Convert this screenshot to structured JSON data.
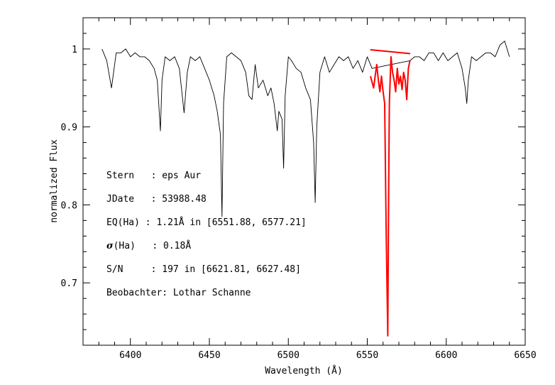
{
  "chart_data": {
    "type": "line",
    "title": "",
    "xlabel": "Wavelength (Å)",
    "ylabel": "normalized Flux",
    "xlim": [
      6370,
      6650
    ],
    "ylim": [
      0.62,
      1.04
    ],
    "x_ticks": [
      6400,
      6450,
      6500,
      6550,
      6600,
      6650
    ],
    "y_ticks": [
      0.7,
      0.8,
      0.9,
      1.0
    ],
    "x_tick_labels": [
      "6400",
      "6450",
      "6500",
      "6550",
      "6600",
      "6650"
    ],
    "y_tick_labels": [
      "0.7",
      "0.8",
      "0.9",
      "1"
    ],
    "grid": false,
    "series": [
      {
        "color": "#000000",
        "x": [
          6382,
          6385,
          6388,
          6391,
          6394,
          6397,
          6400,
          6403,
          6406,
          6409,
          6412,
          6415,
          6417,
          6419,
          6420,
          6422,
          6425,
          6428,
          6431,
          6434,
          6436,
          6438,
          6441,
          6444,
          6447,
          6450,
          6453,
          6455,
          6457,
          6458,
          6459,
          6461,
          6464,
          6467,
          6470,
          6473,
          6475,
          6477,
          6479,
          6481,
          6484,
          6487,
          6489,
          6491,
          6493,
          6494,
          6496,
          6497,
          6498,
          6500,
          6502,
          6505,
          6508,
          6511,
          6514,
          6516,
          6517,
          6518,
          6520,
          6523,
          6526,
          6529,
          6532,
          6535,
          6538,
          6541,
          6544,
          6547,
          6550,
          6553,
          6577,
          6580,
          6583,
          6586,
          6589,
          6592,
          6595,
          6598,
          6601,
          6604,
          6607,
          6610,
          6612,
          6613,
          6614,
          6616,
          6619,
          6622,
          6625,
          6628,
          6631,
          6634,
          6637,
          6640
        ],
        "values": [
          1.0,
          0.985,
          0.95,
          0.995,
          0.995,
          1.0,
          0.99,
          0.995,
          0.99,
          0.99,
          0.985,
          0.975,
          0.96,
          0.895,
          0.96,
          0.99,
          0.985,
          0.99,
          0.975,
          0.918,
          0.97,
          0.99,
          0.985,
          0.99,
          0.975,
          0.96,
          0.94,
          0.92,
          0.89,
          0.785,
          0.93,
          0.99,
          0.995,
          0.99,
          0.985,
          0.97,
          0.94,
          0.935,
          0.98,
          0.95,
          0.96,
          0.94,
          0.95,
          0.93,
          0.895,
          0.92,
          0.91,
          0.847,
          0.94,
          0.99,
          0.985,
          0.975,
          0.97,
          0.95,
          0.935,
          0.88,
          0.803,
          0.9,
          0.97,
          0.99,
          0.97,
          0.98,
          0.99,
          0.985,
          0.99,
          0.975,
          0.985,
          0.97,
          0.99,
          0.975,
          0.985,
          0.99,
          0.99,
          0.985,
          0.995,
          0.995,
          0.985,
          0.995,
          0.985,
          0.99,
          0.995,
          0.975,
          0.95,
          0.93,
          0.96,
          0.99,
          0.985,
          0.99,
          0.995,
          0.995,
          0.99,
          1.005,
          1.01,
          0.99
        ]
      },
      {
        "color": "#ff0000",
        "x": [
          6552,
          6554,
          6556,
          6557,
          6558,
          6559,
          6560,
          6561,
          6562,
          6563,
          6563.5,
          6564,
          6565,
          6566,
          6567,
          6568,
          6569,
          6570,
          6571,
          6572,
          6573,
          6574,
          6575,
          6576,
          6577
        ],
        "values": [
          0.965,
          0.95,
          0.98,
          0.96,
          0.945,
          0.965,
          0.945,
          0.93,
          0.76,
          0.632,
          0.8,
          0.93,
          0.99,
          0.97,
          0.96,
          0.945,
          0.975,
          0.955,
          0.965,
          0.948,
          0.97,
          0.96,
          0.935,
          0.975,
          0.985
        ]
      },
      {
        "color": "#ff0000",
        "x": [
          6551.88,
          6577.21
        ],
        "values": [
          0.999,
          0.994
        ]
      }
    ]
  },
  "annotations": {
    "stern": "Stern   : eps Aur",
    "jdate": "JDate   : 53988.48",
    "eq": "EQ(Ha) : 1.21Å in [6551.88, 6577.21]",
    "sigma_symbol": "σ",
    "sigma_rest": "(Ha)   : 0.18Å",
    "sn": "S/N     : 197 in [6621.81, 6627.48]",
    "observer": "Beobachter: Lothar Schanne"
  }
}
